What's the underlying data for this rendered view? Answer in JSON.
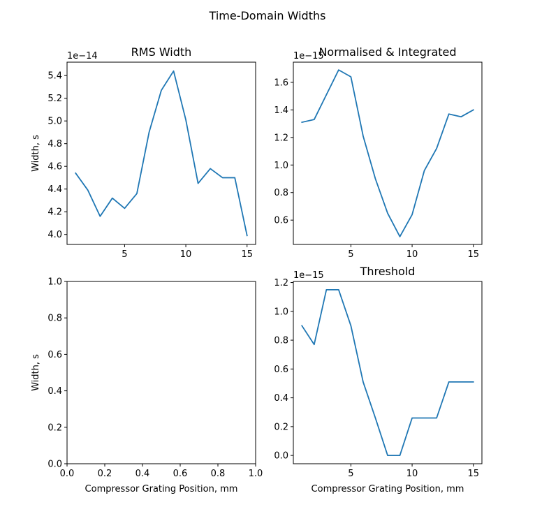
{
  "figure": {
    "title": "Time-Domain Widths"
  },
  "chart_data": [
    {
      "type": "line",
      "title": "RMS Width",
      "xlabel": "",
      "ylabel": "Width, s",
      "offset_label": "1e−14",
      "x": [
        1,
        2,
        3,
        4,
        5,
        6,
        7,
        8,
        9,
        10,
        11,
        12,
        13,
        14,
        15
      ],
      "y": [
        4.54,
        4.39,
        4.16,
        4.32,
        4.23,
        4.36,
        4.9,
        5.27,
        5.44,
        5.01,
        4.45,
        4.58,
        4.5,
        4.5,
        3.99
      ],
      "xlim": [
        0.3,
        15.7
      ],
      "ylim": [
        3.912,
        5.518
      ],
      "xticks": [
        5,
        10,
        15
      ],
      "xticklabels": [
        "5",
        "10",
        "15"
      ],
      "yticks": [
        4.0,
        4.2,
        4.4,
        4.6,
        4.8,
        5.0,
        5.2,
        5.4
      ],
      "yticklabels": [
        "4.0",
        "4.2",
        "4.4",
        "4.6",
        "4.8",
        "5.0",
        "5.2",
        "5.4"
      ]
    },
    {
      "type": "line",
      "title": "Normalised & Integrated",
      "xlabel": "",
      "ylabel": "",
      "offset_label": "1e−15",
      "x": [
        1,
        2,
        3,
        4,
        5,
        6,
        7,
        8,
        9,
        10,
        11,
        12,
        13,
        14,
        15
      ],
      "y": [
        1.31,
        1.33,
        1.51,
        1.69,
        1.64,
        1.21,
        0.9,
        0.65,
        0.48,
        0.64,
        0.96,
        1.12,
        1.37,
        1.35,
        1.4
      ],
      "xlim": [
        0.3,
        15.7
      ],
      "ylim": [
        0.4235,
        1.7465
      ],
      "xticks": [
        5,
        10,
        15
      ],
      "xticklabels": [
        "5",
        "10",
        "15"
      ],
      "yticks": [
        0.6,
        0.8,
        1.0,
        1.2,
        1.4,
        1.6
      ],
      "yticklabels": [
        "0.6",
        "0.8",
        "1.0",
        "1.2",
        "1.4",
        "1.6"
      ]
    },
    {
      "type": "line",
      "title": "",
      "xlabel": "Compressor Grating Position, mm",
      "ylabel": "Width, s",
      "offset_label": "",
      "x": [],
      "y": [],
      "xlim": [
        0,
        1
      ],
      "ylim": [
        0,
        1
      ],
      "xticks": [
        0,
        0.2,
        0.4,
        0.6,
        0.8,
        1.0
      ],
      "xticklabels": [
        "0.0",
        "0.2",
        "0.4",
        "0.6",
        "0.8",
        "1.0"
      ],
      "yticks": [
        0,
        0.2,
        0.4,
        0.6,
        0.8,
        1.0
      ],
      "yticklabels": [
        "0.0",
        "0.2",
        "0.4",
        "0.6",
        "0.8",
        "1.0"
      ]
    },
    {
      "type": "line",
      "title": "Threshold",
      "xlabel": "Compressor Grating Position, mm",
      "ylabel": "",
      "offset_label": "1e−15",
      "x": [
        1,
        2,
        3,
        4,
        5,
        6,
        7,
        8,
        9,
        10,
        11,
        12,
        13,
        14,
        15
      ],
      "y": [
        0.9,
        0.77,
        1.15,
        1.15,
        0.9,
        0.51,
        0.26,
        0.0,
        0.0,
        0.26,
        0.26,
        0.26,
        0.51,
        0.51,
        0.51
      ],
      "xlim": [
        0.3,
        15.7
      ],
      "ylim": [
        -0.0575,
        1.2075
      ],
      "xticks": [
        5,
        10,
        15
      ],
      "xticklabels": [
        "5",
        "10",
        "15"
      ],
      "yticks": [
        0.0,
        0.2,
        0.4,
        0.6,
        0.8,
        1.0,
        1.2
      ],
      "yticklabels": [
        "0.0",
        "0.2",
        "0.4",
        "0.6",
        "0.8",
        "1.0",
        "1.2"
      ]
    }
  ]
}
